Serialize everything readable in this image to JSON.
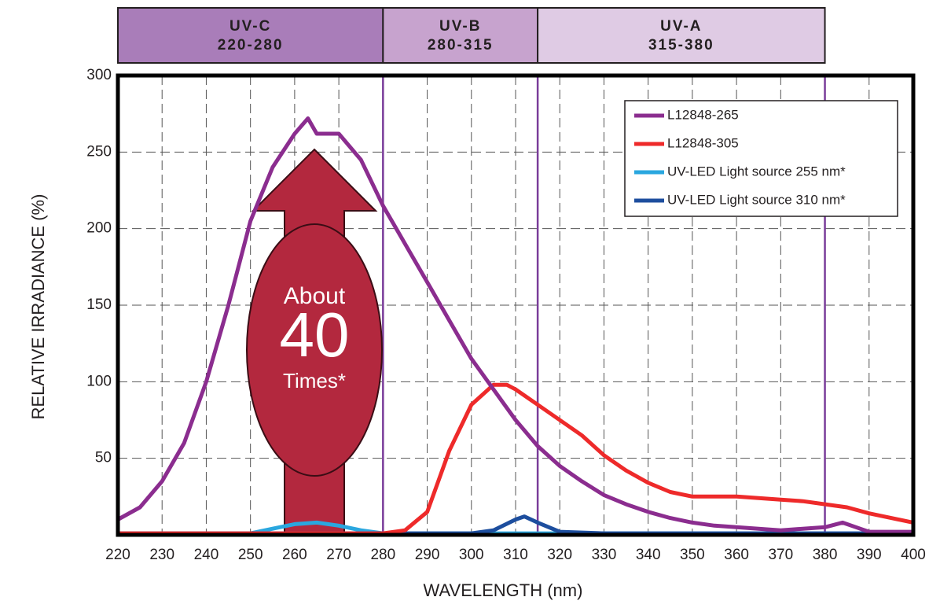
{
  "chart_data": {
    "type": "line",
    "bands": [
      {
        "name": "UV-C",
        "label": "220-280",
        "start": 220,
        "end": 280,
        "color": "#a97db9"
      },
      {
        "name": "UV-B",
        "label": "280-315",
        "start": 280,
        "end": 315,
        "color": "#c7a3ce"
      },
      {
        "name": "UV-A",
        "label": "315-380",
        "start": 315,
        "end": 380,
        "color": "#dfcbe4"
      }
    ],
    "band_line_color": "#7a3d9a",
    "xlabel": "WAVELENGTH (nm)",
    "ylabel": "RELATIVE IRRADIANCE (%)",
    "xlim": [
      220,
      400
    ],
    "xticks": [
      220,
      230,
      240,
      250,
      260,
      270,
      280,
      290,
      300,
      310,
      320,
      330,
      340,
      350,
      360,
      370,
      380,
      390,
      400
    ],
    "ylim": [
      0,
      300
    ],
    "yticks": [
      50,
      100,
      150,
      200,
      250,
      300
    ],
    "grid": true,
    "annotation": {
      "line1": "About",
      "line2": "40",
      "line3": "Times*",
      "color": "#b3283e"
    },
    "legend": "upper right",
    "series": [
      {
        "name": "L12848-265",
        "color": "#8b2d8f",
        "x": [
          220,
          225,
          230,
          235,
          240,
          245,
          250,
          255,
          260,
          263,
          265,
          270,
          275,
          280,
          285,
          290,
          295,
          300,
          305,
          310,
          315,
          320,
          325,
          330,
          335,
          340,
          345,
          350,
          355,
          360,
          365,
          370,
          375,
          380,
          384,
          388,
          390,
          400
        ],
        "values": [
          10,
          18,
          35,
          60,
          100,
          150,
          205,
          240,
          262,
          272,
          262,
          262,
          245,
          215,
          190,
          165,
          140,
          115,
          95,
          75,
          58,
          45,
          35,
          26,
          20,
          15,
          11,
          8,
          6,
          5,
          4,
          3,
          4,
          5,
          8,
          4,
          2,
          2
        ]
      },
      {
        "name": "L12848-305",
        "color": "#ee2a2a",
        "x": [
          220,
          280,
          285,
          290,
          295,
          300,
          305,
          308,
          310,
          315,
          320,
          325,
          330,
          335,
          340,
          345,
          350,
          355,
          360,
          365,
          370,
          375,
          380,
          385,
          390,
          395,
          400
        ],
        "values": [
          1,
          1,
          3,
          15,
          55,
          85,
          98,
          98,
          95,
          85,
          75,
          65,
          52,
          42,
          34,
          28,
          25,
          25,
          25,
          24,
          23,
          22,
          20,
          18,
          14,
          11,
          8
        ]
      },
      {
        "name": "UV-LED Light source 255 nm*",
        "color": "#2aa7df",
        "x": [
          220,
          250,
          255,
          260,
          265,
          270,
          275,
          280,
          400
        ],
        "values": [
          1,
          1,
          4,
          7,
          8,
          6,
          3,
          1,
          1
        ]
      },
      {
        "name": "UV-LED Light source 310 nm*",
        "color": "#1d4e9e",
        "x": [
          220,
          300,
          305,
          310,
          312,
          315,
          320,
          330,
          400
        ],
        "values": [
          1,
          1,
          3,
          10,
          12,
          8,
          2,
          1,
          1
        ]
      }
    ]
  }
}
